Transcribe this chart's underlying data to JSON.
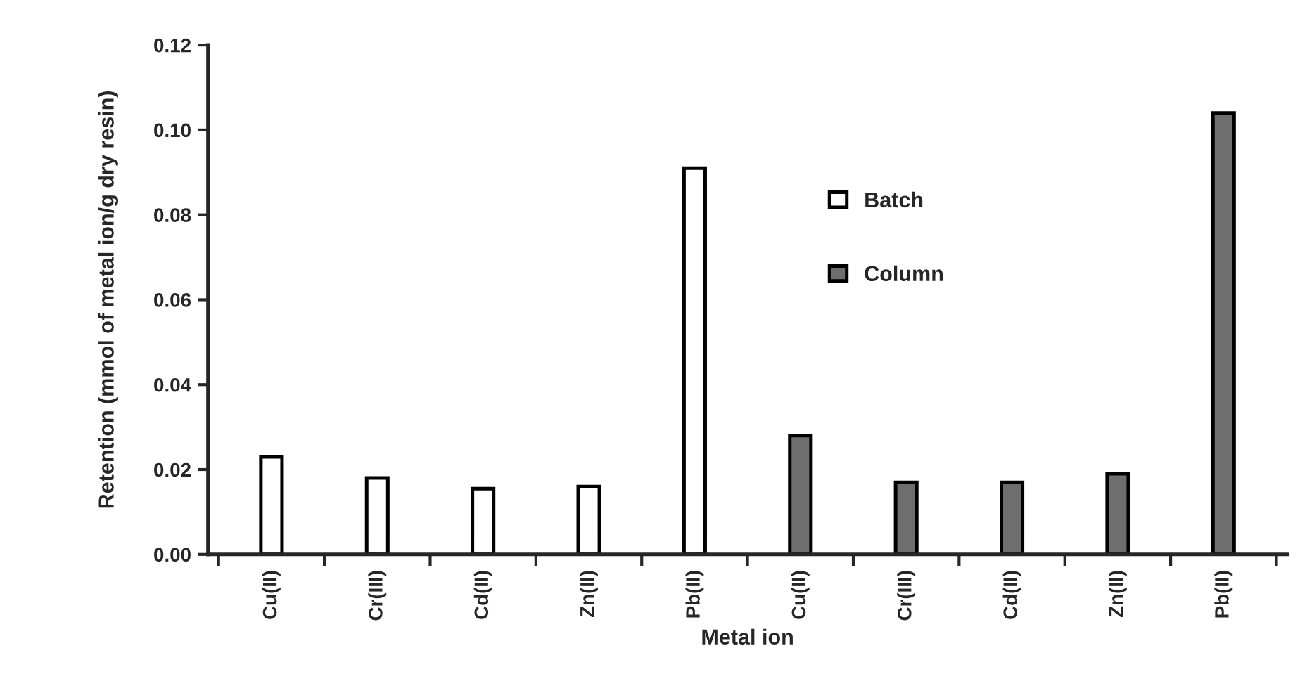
{
  "chart_data": {
    "type": "bar",
    "xlabel": "Metal ion",
    "ylabel": "Retention (mmol of metal ion/g dry resin)",
    "categories": [
      "Cu(II)",
      "Cr(III)",
      "Cd(II)",
      "Zn(II)",
      "Pb(II)",
      "Cu(II)",
      "Cr(III)",
      "Cd(II)",
      "Zn(II)",
      "Pb(II)"
    ],
    "series": [
      {
        "name": "Batch",
        "color": "#ffffff",
        "values": [
          0.023,
          0.018,
          0.0155,
          0.016,
          0.091,
          null,
          null,
          null,
          null,
          null
        ]
      },
      {
        "name": "Column",
        "color": "#6e6e6e",
        "values": [
          null,
          null,
          null,
          null,
          null,
          0.028,
          0.017,
          0.017,
          0.019,
          0.104
        ]
      }
    ],
    "ylim": [
      0,
      0.12
    ],
    "yticks": [
      {
        "value": 0,
        "label": "0.00"
      },
      {
        "value": 0.02,
        "label": "0.02"
      },
      {
        "value": 0.04,
        "label": "0.04"
      },
      {
        "value": 0.06,
        "label": "0.06"
      },
      {
        "value": 0.08,
        "label": "0.08"
      },
      {
        "value": 0.1,
        "label": "0.10"
      },
      {
        "value": 0.12,
        "label": "0.12"
      }
    ],
    "grid": false,
    "legend": "center"
  }
}
